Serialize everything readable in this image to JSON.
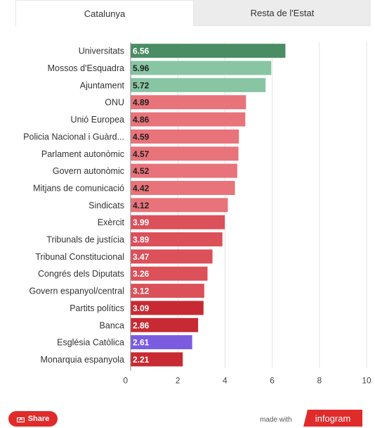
{
  "tabs": [
    {
      "label": "Catalunya",
      "active": true
    },
    {
      "label": "Resta de l'Estat",
      "active": false
    }
  ],
  "chart_data": {
    "type": "bar",
    "orientation": "horizontal",
    "categories": [
      "Universitats",
      "Mossos d'Esquadra",
      "Ajuntament",
      "ONU",
      "Unió Europea",
      "Policia Nacional i Guàrd...",
      "Parlament autonòmic",
      "Govern autonòmic",
      "Mitjans de comunicació",
      "Sindicats",
      "Exèrcit",
      "Tribunals de justícia",
      "Tribunal Constitucional",
      "Congrés dels Diputats",
      "Govern espanyol/central",
      "Partits polítics",
      "Banca",
      "Església Catòlica",
      "Monarquia espanyola"
    ],
    "values": [
      6.56,
      5.96,
      5.72,
      4.89,
      4.86,
      4.59,
      4.57,
      4.52,
      4.42,
      4.12,
      3.99,
      3.89,
      3.47,
      3.26,
      3.12,
      3.09,
      2.86,
      2.61,
      2.21
    ],
    "value_labels": [
      "6.56",
      "5.96",
      "5.72",
      "4.89",
      "4.86",
      "4.59",
      "4.57",
      "4.52",
      "4.42",
      "4.12",
      "3.99",
      "3.89",
      "3.47",
      "3.26",
      "3.12",
      "3.09",
      "2.86",
      "2.61",
      "2.21"
    ],
    "colors": [
      "#4a8c63",
      "#88c5a3",
      "#88c5a3",
      "#e8737a",
      "#e8737a",
      "#e8737a",
      "#e8737a",
      "#e8737a",
      "#e8737a",
      "#e8737a",
      "#db5059",
      "#db5059",
      "#db5059",
      "#db5059",
      "#db5059",
      "#c72a32",
      "#c72a32",
      "#7b5ce0",
      "#c72a32"
    ],
    "label_text_colors": [
      "#ffffff",
      "#222222",
      "#222222",
      "#222222",
      "#222222",
      "#222222",
      "#222222",
      "#222222",
      "#222222",
      "#222222",
      "#ffffff",
      "#ffffff",
      "#ffffff",
      "#ffffff",
      "#ffffff",
      "#ffffff",
      "#ffffff",
      "#ffffff",
      "#ffffff"
    ],
    "xlim": [
      0,
      10
    ],
    "xticks": [
      0,
      2,
      4,
      6,
      8,
      10
    ],
    "grid": true
  },
  "footer": {
    "share_label": "Share",
    "made_with": "made with",
    "brand": "infogram"
  }
}
